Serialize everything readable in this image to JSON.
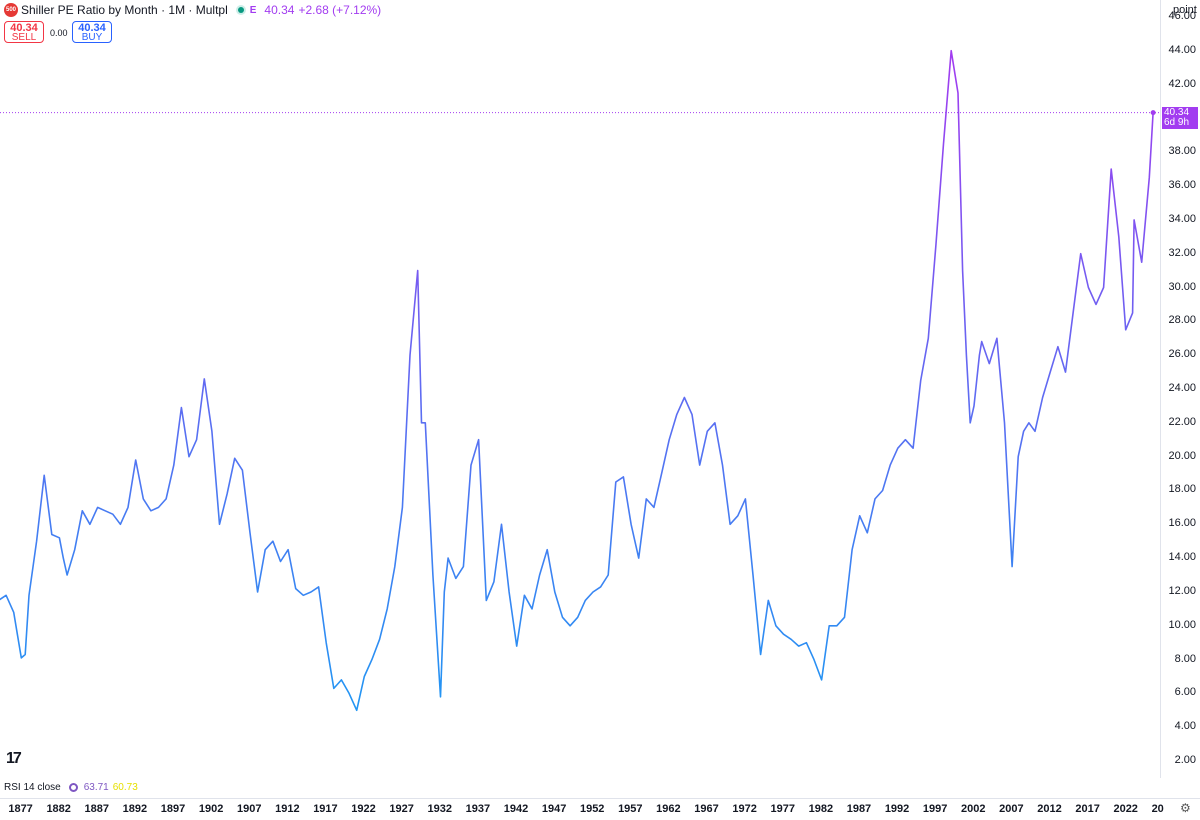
{
  "header": {
    "title": "Shiller PE Ratio by Month · 1M · Multpl",
    "logo_text": "500",
    "exchange_flag": "E",
    "last_price": "40.34",
    "change": "+2.68 (+7.12%)"
  },
  "trade": {
    "sell_price": "40.34",
    "sell_label": "SELL",
    "spread": "0.00",
    "buy_price": "40.34",
    "buy_label": "BUY"
  },
  "price_axis": {
    "unit": "point",
    "ticks": [
      "46.00",
      "44.00",
      "42.00",
      "40.00",
      "38.00",
      "36.00",
      "34.00",
      "32.00",
      "30.00",
      "28.00",
      "26.00",
      "24.00",
      "22.00",
      "20.00",
      "18.00",
      "16.00",
      "14.00",
      "12.00",
      "10.00",
      "8.00",
      "6.00",
      "4.00",
      "2.00"
    ],
    "last_tag_value": "40.34",
    "last_tag_countdown": "6d 9h"
  },
  "time_axis": {
    "ticks": [
      "1877",
      "1882",
      "1887",
      "1892",
      "1897",
      "1902",
      "1907",
      "1912",
      "1917",
      "1922",
      "1927",
      "1932",
      "1937",
      "1942",
      "1947",
      "1952",
      "1957",
      "1962",
      "1967",
      "1972",
      "1977",
      "1982",
      "1987",
      "1992",
      "1997",
      "2002",
      "2007",
      "2012",
      "2017",
      "2022",
      "20"
    ]
  },
  "indicator": {
    "name": "RSI 14 close",
    "value_rsi": "63.71",
    "value_ma": "60.73"
  },
  "colors": {
    "line_start": "#2196f3",
    "line_end": "#a23cf0",
    "accent": "#a23cf0",
    "sell": "#f23645",
    "buy": "#2962ff",
    "last_price_line": "#a23cf0"
  },
  "chart_data": {
    "type": "line",
    "title": "Shiller PE Ratio by Month · 1M · Multpl",
    "ylabel": "point",
    "ylim": [
      1,
      47
    ],
    "xlim": [
      1874.2,
      2026.4
    ],
    "grid": false,
    "series": [
      {
        "x": [
          1874.0,
          1875.0,
          1876.0,
          1877.0,
          1877.5,
          1878.0,
          1879.0,
          1880.0,
          1881.0,
          1882.0,
          1882.5,
          1883.0,
          1884.0,
          1885.0,
          1886.0,
          1887.0,
          1888.0,
          1889.0,
          1890.0,
          1891.0,
          1892.0,
          1893.0,
          1894.0,
          1895.0,
          1896.0,
          1897.0,
          1898.0,
          1899.0,
          1900.0,
          1901.0,
          1902.0,
          1903.0,
          1904.0,
          1905.0,
          1906.0,
          1907.0,
          1908.0,
          1909.0,
          1910.0,
          1911.0,
          1912.0,
          1913.0,
          1914.0,
          1915.0,
          1916.0,
          1917.0,
          1918.0,
          1919.0,
          1920.0,
          1921.0,
          1922.0,
          1923.0,
          1924.0,
          1925.0,
          1926.0,
          1927.0,
          1928.0,
          1929.0,
          1929.5,
          1930.0,
          1931.0,
          1932.0,
          1932.5,
          1933.0,
          1934.0,
          1935.0,
          1936.0,
          1937.0,
          1938.0,
          1939.0,
          1940.0,
          1941.0,
          1942.0,
          1943.0,
          1944.0,
          1945.0,
          1946.0,
          1947.0,
          1948.0,
          1949.0,
          1950.0,
          1951.0,
          1952.0,
          1953.0,
          1954.0,
          1955.0,
          1956.0,
          1957.0,
          1958.0,
          1959.0,
          1960.0,
          1961.0,
          1962.0,
          1963.0,
          1964.0,
          1965.0,
          1966.0,
          1967.0,
          1968.0,
          1969.0,
          1970.0,
          1971.0,
          1972.0,
          1973.0,
          1974.0,
          1975.0,
          1976.0,
          1977.0,
          1978.0,
          1979.0,
          1980.0,
          1981.0,
          1982.0,
          1983.0,
          1984.0,
          1985.0,
          1986.0,
          1987.0,
          1988.0,
          1989.0,
          1990.0,
          1991.0,
          1992.0,
          1993.0,
          1994.0,
          1995.0,
          1996.0,
          1997.0,
          1998.0,
          1999.0,
          1999.9,
          2000.5,
          2001.0,
          2001.5,
          2002.0,
          2002.7,
          2003.0,
          2004.0,
          2005.0,
          2006.0,
          2007.0,
          2007.8,
          2008.5,
          2009.2,
          2010.0,
          2011.0,
          2012.0,
          2013.0,
          2014.0,
          2015.0,
          2016.0,
          2017.0,
          2018.0,
          2019.0,
          2020.0,
          2021.0,
          2021.9,
          2022.8,
          2023.0,
          2024.0,
          2025.0,
          2025.5
        ],
        "y": [
          11.5,
          11.8,
          10.8,
          8.1,
          8.3,
          11.8,
          15.0,
          18.9,
          15.4,
          15.2,
          14.0,
          13.0,
          14.5,
          16.8,
          16.0,
          17.0,
          16.8,
          16.6,
          16.0,
          17.0,
          19.8,
          17.5,
          16.8,
          17.0,
          17.5,
          19.5,
          22.9,
          20.0,
          21.0,
          24.6,
          21.5,
          16.0,
          17.8,
          19.9,
          19.2,
          15.5,
          12.0,
          14.5,
          15.0,
          13.8,
          14.5,
          12.2,
          11.8,
          12.0,
          12.3,
          9.0,
          6.3,
          6.8,
          6.0,
          5.0,
          7.0,
          8.0,
          9.2,
          11.0,
          13.5,
          17.0,
          26.0,
          31.0,
          22.0,
          22.0,
          13.0,
          5.8,
          12.0,
          14.0,
          12.8,
          13.5,
          19.5,
          21.0,
          11.5,
          12.6,
          16.0,
          12.0,
          8.8,
          11.8,
          11.0,
          13.0,
          14.5,
          12.0,
          10.5,
          10.0,
          10.5,
          11.5,
          12.0,
          12.3,
          13.0,
          18.5,
          18.8,
          16.0,
          14.0,
          17.5,
          17.0,
          19.0,
          21.0,
          22.5,
          23.5,
          22.5,
          19.5,
          21.5,
          22.0,
          19.5,
          16.0,
          16.5,
          17.5,
          13.0,
          8.3,
          11.5,
          10.0,
          9.5,
          9.2,
          8.8,
          9.0,
          8.0,
          6.8,
          10.0,
          10.0,
          10.5,
          14.5,
          16.5,
          15.5,
          17.5,
          18.0,
          19.5,
          20.5,
          21.0,
          20.5,
          24.5,
          27.0,
          32.5,
          38.5,
          44.0,
          41.5,
          31.0,
          26.0,
          22.0,
          23.0,
          26.0,
          26.8,
          25.5,
          27.0,
          22.0,
          13.5,
          20.0,
          21.5,
          22.0,
          21.5,
          23.5,
          25.0,
          26.5,
          25.0,
          28.5,
          32.0,
          30.0,
          29.0,
          30.0,
          37.0,
          33.0,
          27.5,
          28.5,
          34.0,
          31.5,
          36.5,
          40.34
        ]
      }
    ]
  }
}
